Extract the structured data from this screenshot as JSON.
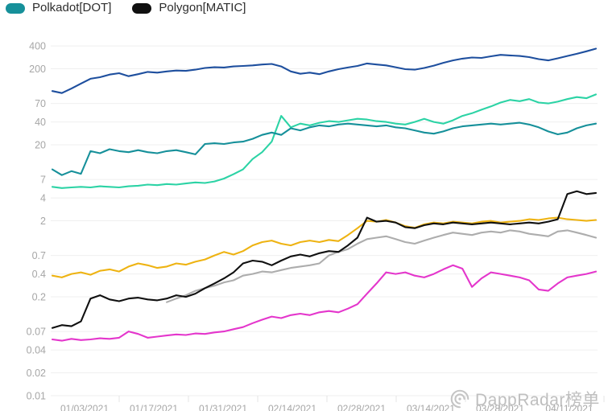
{
  "legend": {
    "items": [
      {
        "label": "Polkadot[DOT]",
        "color": "#16909a"
      },
      {
        "label": "Polygon[MATIC]",
        "color": "#101010"
      }
    ]
  },
  "watermark": {
    "text": "DappRadar榜单",
    "icon": "dappradar-radar-logo-icon"
  },
  "chart_data": {
    "type": "line",
    "scale": "log",
    "title": "",
    "xlabel": "",
    "ylabel": "",
    "grid": "horizontal",
    "legend_position": "top-left",
    "ylim": [
      0.01,
      400
    ],
    "y_ticks": [
      400,
      200,
      70,
      40,
      20,
      7,
      4,
      2,
      0.7,
      0.4,
      0.2,
      0.07,
      0.04,
      0.02,
      0.01
    ],
    "x_labels": [
      "01/03/2021",
      "01/17/2021",
      "01/31/2021",
      "02/14/2021",
      "02/28/2021",
      "03/14/2021",
      "03/28/2021",
      "04/11/2021"
    ],
    "series": [
      {
        "name": "unlabeled-navy",
        "color": "#1e4f9e",
        "values": [
          102,
          96,
          110,
          128,
          148,
          155,
          168,
          175,
          160,
          170,
          182,
          178,
          185,
          190,
          188,
          195,
          205,
          210,
          208,
          215,
          218,
          222,
          228,
          232,
          215,
          185,
          172,
          178,
          170,
          185,
          198,
          208,
          218,
          235,
          228,
          222,
          210,
          198,
          195,
          205,
          220,
          240,
          258,
          272,
          282,
          278,
          292,
          305,
          300,
          295,
          285,
          268,
          258,
          275,
          295,
          315,
          340,
          368
        ]
      },
      {
        "name": "unlabeled-mint-green",
        "color": "#2cd3a5",
        "values": [
          5.6,
          5.4,
          5.5,
          5.6,
          5.5,
          5.7,
          5.6,
          5.5,
          5.7,
          5.8,
          6.0,
          5.9,
          6.1,
          6.0,
          6.2,
          6.4,
          6.3,
          6.6,
          7.2,
          8.2,
          9.5,
          13,
          16,
          22,
          48,
          34,
          38,
          36,
          39,
          41,
          40,
          42,
          44,
          43,
          41,
          40,
          38,
          37,
          40,
          44,
          40,
          38,
          42,
          48,
          52,
          58,
          64,
          72,
          78,
          75,
          80,
          72,
          70,
          74,
          80,
          85,
          82,
          92
        ]
      },
      {
        "name": "Polkadot[DOT]",
        "color": "#16909a",
        "values": [
          9.5,
          8.0,
          9.0,
          8.3,
          16.5,
          15.5,
          17.5,
          16.5,
          16.0,
          17.0,
          16.0,
          15.5,
          16.5,
          17.0,
          16.0,
          15.0,
          20.5,
          21.0,
          20.5,
          21.5,
          22,
          24,
          27,
          29,
          27,
          33,
          31,
          34,
          36,
          35,
          37,
          38,
          37,
          36,
          35,
          36,
          34,
          33,
          31,
          29,
          28,
          30,
          33,
          35,
          36,
          37,
          38,
          37,
          38,
          39,
          37,
          34,
          30,
          27.5,
          29,
          33,
          36,
          38
        ]
      },
      {
        "name": "unlabeled-orange",
        "color": "#eeb312",
        "values": [
          0.38,
          0.36,
          0.4,
          0.42,
          0.39,
          0.44,
          0.46,
          0.43,
          0.5,
          0.55,
          0.52,
          0.48,
          0.5,
          0.55,
          0.53,
          0.58,
          0.62,
          0.7,
          0.78,
          0.72,
          0.8,
          0.95,
          1.05,
          1.1,
          1.0,
          0.95,
          1.05,
          1.1,
          1.05,
          1.12,
          1.08,
          1.3,
          1.6,
          2.0,
          1.95,
          2.05,
          1.9,
          1.7,
          1.62,
          1.8,
          1.9,
          1.85,
          1.95,
          1.9,
          1.85,
          1.95,
          2.0,
          1.9,
          1.95,
          2.0,
          2.1,
          2.05,
          2.15,
          2.2,
          2.1,
          2.05,
          2.0,
          2.05
        ]
      },
      {
        "name": "unlabeled-gray",
        "color": "#adadad",
        "values": [
          null,
          null,
          null,
          null,
          null,
          null,
          null,
          null,
          null,
          null,
          null,
          null,
          0.17,
          0.19,
          0.21,
          0.24,
          0.26,
          0.28,
          0.31,
          0.33,
          0.38,
          0.4,
          0.43,
          0.42,
          0.45,
          0.48,
          0.5,
          0.52,
          0.55,
          0.7,
          0.78,
          0.85,
          1.0,
          1.15,
          1.2,
          1.25,
          1.15,
          1.05,
          1.0,
          1.1,
          1.2,
          1.3,
          1.4,
          1.35,
          1.3,
          1.4,
          1.45,
          1.4,
          1.5,
          1.45,
          1.35,
          1.3,
          1.25,
          1.45,
          1.5,
          1.4,
          1.3,
          1.2
        ]
      },
      {
        "name": "unlabeled-magenta",
        "color": "#e436cc",
        "values": [
          0.055,
          0.053,
          0.056,
          0.054,
          0.055,
          0.057,
          0.056,
          0.058,
          0.07,
          0.065,
          0.058,
          0.06,
          0.062,
          0.064,
          0.063,
          0.066,
          0.065,
          0.068,
          0.07,
          0.075,
          0.08,
          0.09,
          0.1,
          0.11,
          0.105,
          0.115,
          0.12,
          0.115,
          0.125,
          0.13,
          0.125,
          0.14,
          0.16,
          0.22,
          0.3,
          0.42,
          0.4,
          0.42,
          0.38,
          0.36,
          0.4,
          0.46,
          0.52,
          0.47,
          0.27,
          0.35,
          0.42,
          0.4,
          0.38,
          0.36,
          0.33,
          0.25,
          0.24,
          0.3,
          0.36,
          0.38,
          0.4,
          0.43
        ]
      },
      {
        "name": "Polygon[MATIC]",
        "color": "#101010",
        "values": [
          0.078,
          0.085,
          0.082,
          0.095,
          0.19,
          0.21,
          0.185,
          0.175,
          0.19,
          0.195,
          0.185,
          0.18,
          0.19,
          0.21,
          0.2,
          0.22,
          0.26,
          0.3,
          0.35,
          0.42,
          0.55,
          0.6,
          0.58,
          0.52,
          0.6,
          0.68,
          0.72,
          0.68,
          0.75,
          0.8,
          0.78,
          0.95,
          1.2,
          2.2,
          1.95,
          2.0,
          1.9,
          1.65,
          1.6,
          1.75,
          1.85,
          1.8,
          1.9,
          1.85,
          1.8,
          1.85,
          1.9,
          1.85,
          1.8,
          1.85,
          1.9,
          1.85,
          1.95,
          2.1,
          4.5,
          4.9,
          4.5,
          4.65
        ]
      }
    ]
  }
}
